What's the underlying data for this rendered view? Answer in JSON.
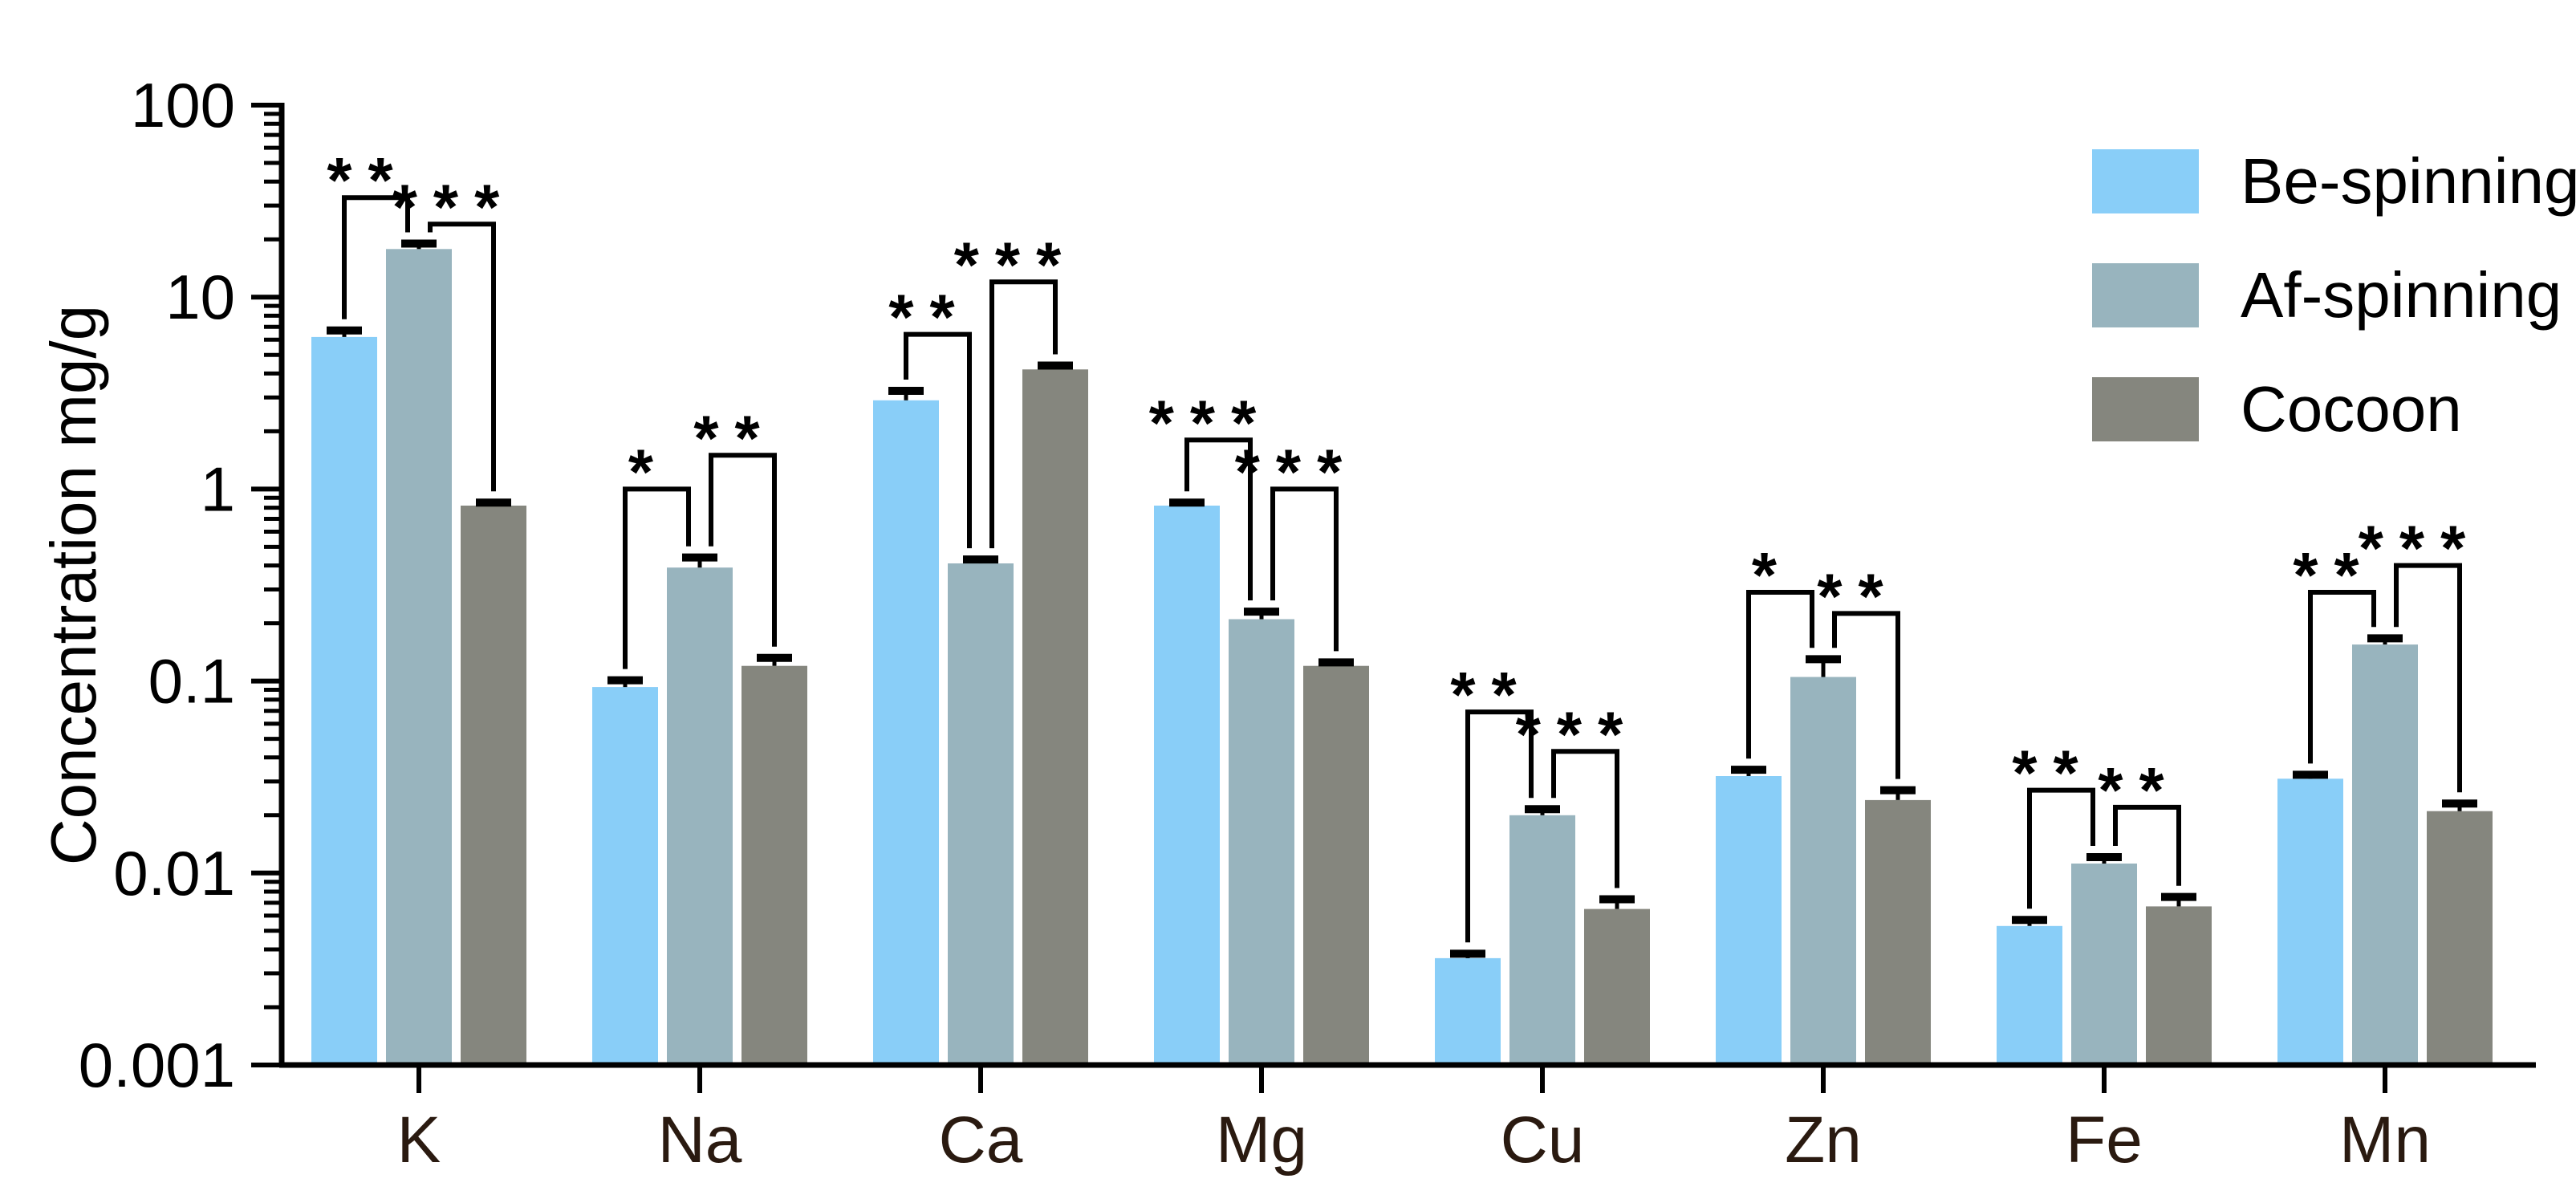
{
  "chart_data": {
    "type": "bar",
    "scale": "log",
    "title": "",
    "xlabel": "",
    "ylabel": "Concentration mg/g",
    "ylim": [
      0.001,
      100
    ],
    "y_tick_labels": [
      "100",
      "10",
      "1",
      "0.1",
      "0.01",
      "0.001"
    ],
    "y_tick_values": [
      100,
      10,
      1,
      0.1,
      0.01,
      0.001
    ],
    "categories": [
      "K",
      "Na",
      "Ca",
      "Mg",
      "Cu",
      "Zn",
      "Fe",
      "Mn"
    ],
    "grid": false,
    "legend_position": "top-right",
    "background": "#ffffff",
    "series": [
      {
        "name": "Be-spinning",
        "color": "#89CEF8",
        "values": [
          6.2,
          0.093,
          2.9,
          0.82,
          0.0036,
          0.032,
          0.0053,
          0.031
        ],
        "errors": [
          0.5,
          0.008,
          0.35,
          0.03,
          0.0002,
          0.0025,
          0.0004,
          0.0015
        ]
      },
      {
        "name": "Af-spinning",
        "color": "#98B4BE",
        "values": [
          17.8,
          0.39,
          0.41,
          0.21,
          0.02,
          0.105,
          0.0112,
          0.155
        ],
        "errors": [
          1.2,
          0.05,
          0.02,
          0.02,
          0.0015,
          0.025,
          0.0009,
          0.012
        ]
      },
      {
        "name": "Cocoon",
        "color": "#85867E",
        "values": [
          0.82,
          0.12,
          4.2,
          0.12,
          0.0065,
          0.024,
          0.0067,
          0.021
        ],
        "errors": [
          0.03,
          0.012,
          0.2,
          0.005,
          0.0008,
          0.003,
          0.0008,
          0.002
        ]
      }
    ],
    "significance": [
      {
        "category": "K",
        "comparisons": [
          {
            "between": [
              0,
              1
            ],
            "label": "**",
            "level": 33
          },
          {
            "between": [
              1,
              2
            ],
            "label": "***",
            "level": 24
          }
        ]
      },
      {
        "category": "Na",
        "comparisons": [
          {
            "between": [
              0,
              1
            ],
            "label": "*",
            "level": 1.0
          },
          {
            "between": [
              1,
              2
            ],
            "label": "**",
            "level": 1.5
          }
        ]
      },
      {
        "category": "Ca",
        "comparisons": [
          {
            "between": [
              0,
              1
            ],
            "label": "**",
            "level": 6.4
          },
          {
            "between": [
              1,
              2
            ],
            "label": "***",
            "level": 12
          }
        ]
      },
      {
        "category": "Mg",
        "comparisons": [
          {
            "between": [
              0,
              1
            ],
            "label": "***",
            "level": 1.8
          },
          {
            "between": [
              1,
              2
            ],
            "label": "***",
            "level": 1.0
          }
        ]
      },
      {
        "category": "Cu",
        "comparisons": [
          {
            "between": [
              0,
              1
            ],
            "label": "**",
            "level": 0.069
          },
          {
            "between": [
              1,
              2
            ],
            "label": "***",
            "level": 0.043
          }
        ]
      },
      {
        "category": "Zn",
        "comparisons": [
          {
            "between": [
              0,
              1
            ],
            "label": "*",
            "level": 0.29
          },
          {
            "between": [
              1,
              2
            ],
            "label": "**",
            "level": 0.225
          }
        ]
      },
      {
        "category": "Fe",
        "comparisons": [
          {
            "between": [
              0,
              1
            ],
            "label": "**",
            "level": 0.027
          },
          {
            "between": [
              1,
              2
            ],
            "label": "**",
            "level": 0.022
          }
        ]
      },
      {
        "category": "Mn",
        "comparisons": [
          {
            "between": [
              0,
              1
            ],
            "label": "**",
            "level": 0.29
          },
          {
            "between": [
              1,
              2
            ],
            "label": "***",
            "level": 0.4
          }
        ]
      }
    ]
  }
}
